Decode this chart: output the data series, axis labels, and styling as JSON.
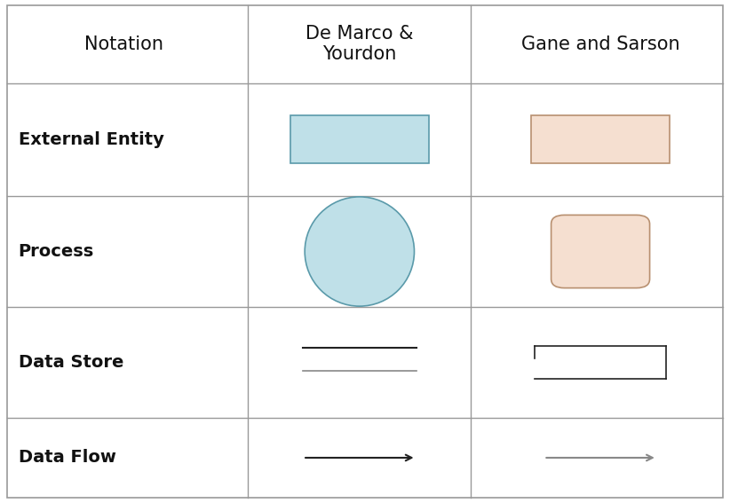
{
  "headers": [
    "Notation",
    "De Marco &\nYourdon",
    "Gane and Sarson"
  ],
  "row_labels": [
    "External Entity",
    "Process",
    "Data Store",
    "Data Flow"
  ],
  "col_dividers": [
    0.34,
    0.645
  ],
  "row_dividers": [
    0.835,
    0.61,
    0.39,
    0.17
  ],
  "blue_fill": "#bfe0e8",
  "peach_fill": "#f5dfd0",
  "blue_stroke": "#5a9aaa",
  "peach_stroke": "#b89070",
  "dark_stroke": "#222222",
  "gray_stroke": "#888888",
  "grid_color": "#999999",
  "bg_color": "#ffffff",
  "label_fontsize": 14,
  "header_fontsize": 15,
  "figw": 8.22,
  "figh": 5.67,
  "dpi": 100
}
